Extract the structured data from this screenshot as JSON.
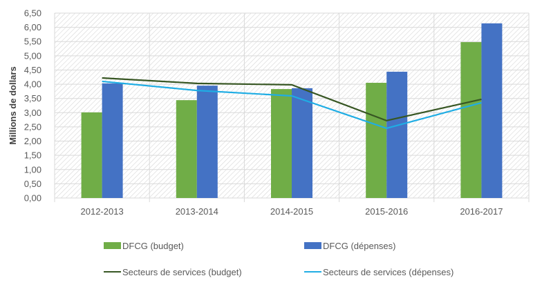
{
  "chart_data": {
    "type": "bar",
    "title": "",
    "xlabel": "",
    "ylabel": "Millions de dollars",
    "ylim": [
      0,
      6.5
    ],
    "ytick_step": 0.5,
    "ytick_labels": [
      "0,00",
      "0,50",
      "1,00",
      "1,50",
      "2,00",
      "2,50",
      "3,00",
      "3,50",
      "4,00",
      "4,50",
      "5,00",
      "5,50",
      "6,00",
      "6,50"
    ],
    "grid": true,
    "categories": [
      "2012-2013",
      "2013-2014",
      "2014-2015",
      "2015-2016",
      "2016-2017"
    ],
    "series": [
      {
        "name": "DFCG (budget)",
        "kind": "bar",
        "color": "#70AD47",
        "values": [
          3.01,
          3.44,
          3.83,
          4.05,
          5.48
        ]
      },
      {
        "name": "DFCG (dépenses)",
        "kind": "bar",
        "color": "#4472C4",
        "values": [
          4.03,
          3.95,
          3.86,
          4.44,
          6.14
        ]
      },
      {
        "name": "Secteurs de services (budget)",
        "kind": "line",
        "color": "#375623",
        "values": [
          4.22,
          4.03,
          3.98,
          2.72,
          3.47
        ]
      },
      {
        "name": "Secteurs de services (dépenses)",
        "kind": "line",
        "color": "#1FADE4",
        "values": [
          4.1,
          3.78,
          3.59,
          2.45,
          3.35
        ]
      }
    ],
    "legend_position": "bottom"
  }
}
